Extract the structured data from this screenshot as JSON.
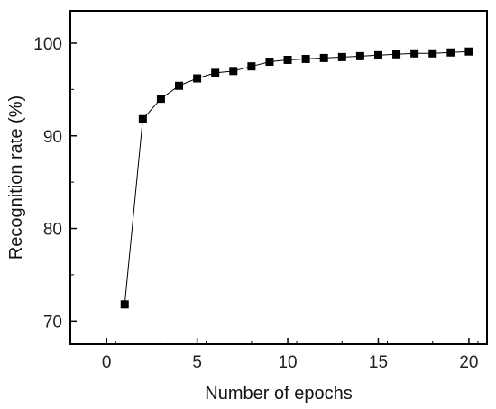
{
  "chart_data": {
    "type": "line",
    "title": "",
    "xlabel": "Number of epochs",
    "ylabel": "Recognition rate (%)",
    "xlim": [
      -2,
      21
    ],
    "ylim": [
      67.5,
      103.5
    ],
    "xticks": [
      0,
      5,
      10,
      15,
      20
    ],
    "yticks": [
      70,
      80,
      90,
      100
    ],
    "grid": false,
    "marker": "square",
    "colors": {
      "series": "#000000",
      "axis": "#000000"
    },
    "series": [
      {
        "x": [
          1,
          2,
          3,
          4,
          5,
          6,
          7,
          8,
          9,
          10,
          11,
          12,
          13,
          14,
          15,
          16,
          17,
          18,
          19,
          20
        ],
        "y": [
          71.8,
          91.8,
          94.0,
          95.4,
          96.2,
          96.8,
          97.0,
          97.5,
          98.0,
          98.2,
          98.3,
          98.4,
          98.5,
          98.6,
          98.7,
          98.8,
          98.9,
          98.9,
          99.0,
          99.1
        ]
      }
    ]
  }
}
